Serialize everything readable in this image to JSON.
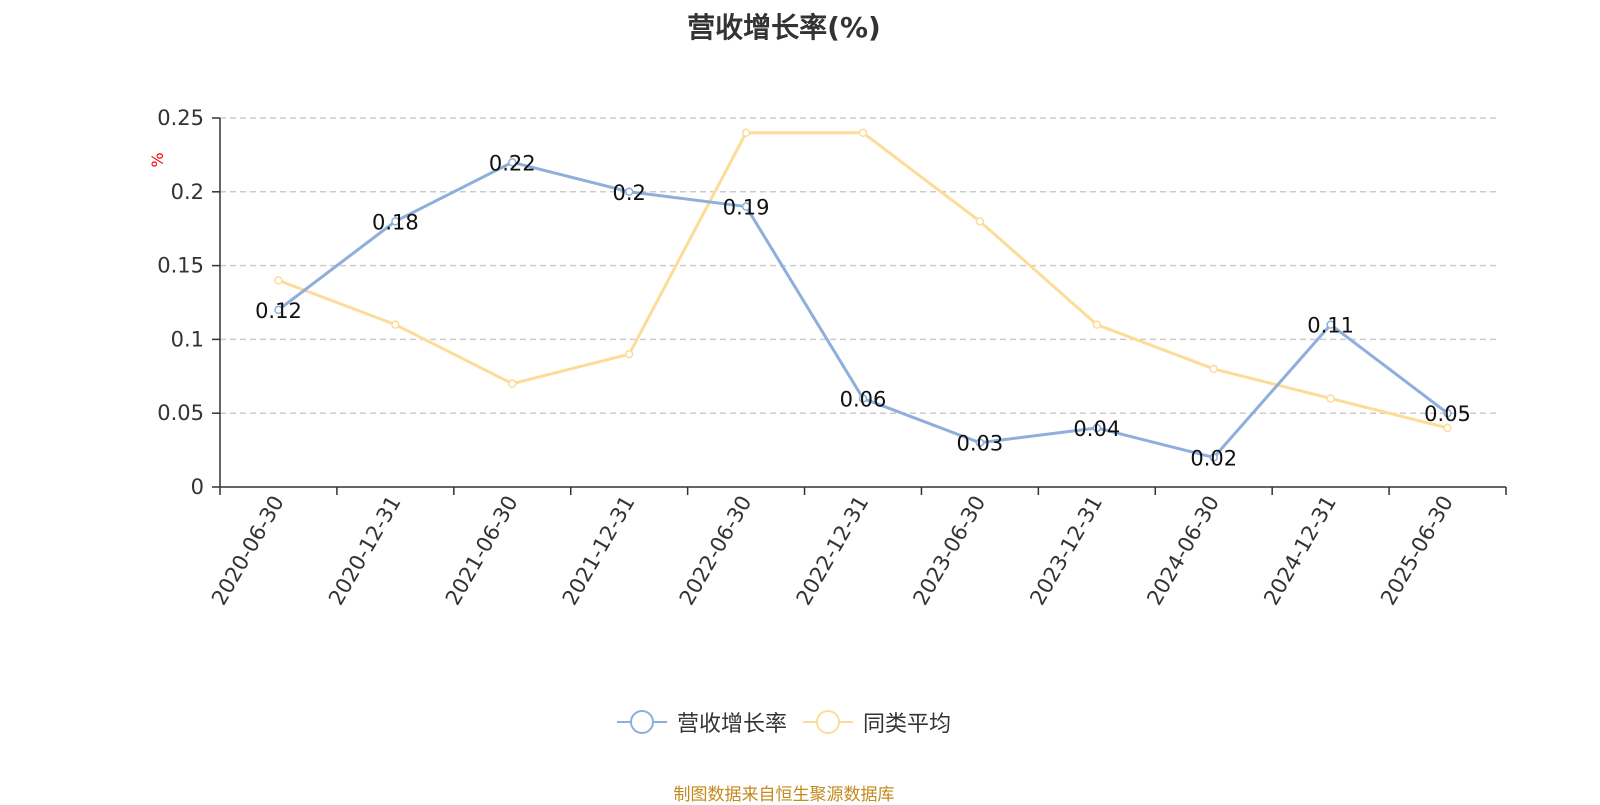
{
  "chart_data": {
    "type": "line",
    "title": "营收增长率(%)",
    "ylabel": "%",
    "xlabel": "",
    "categories": [
      "2020-06-30",
      "2020-12-31",
      "2021-06-30",
      "2021-12-31",
      "2022-06-30",
      "2022-12-31",
      "2023-06-30",
      "2023-12-31",
      "2024-06-30",
      "2024-12-31",
      "2025-06-30"
    ],
    "ylim": [
      0,
      0.25
    ],
    "yticks": [
      "0",
      "0.05",
      "0.1",
      "0.15",
      "0.2",
      "0.25"
    ],
    "grid": true,
    "legend_position": "bottom",
    "series": [
      {
        "name": "营收增长率",
        "color": "#8eaedb",
        "values": [
          0.12,
          0.18,
          0.22,
          0.2,
          0.19,
          0.06,
          0.03,
          0.04,
          0.02,
          0.11,
          0.05
        ],
        "labels": [
          "0.12",
          "0.18",
          "0.22",
          "0.2",
          "0.19",
          "0.06",
          "0.03",
          "0.04",
          "0.02",
          "0.11",
          "0.05"
        ]
      },
      {
        "name": "同类平均",
        "color": "#fddc9a",
        "values": [
          0.14,
          0.11,
          0.07,
          0.09,
          0.24,
          0.24,
          0.18,
          0.11,
          0.08,
          0.06,
          0.04
        ]
      }
    ]
  },
  "source_note": "制图数据来自恒生聚源数据库"
}
